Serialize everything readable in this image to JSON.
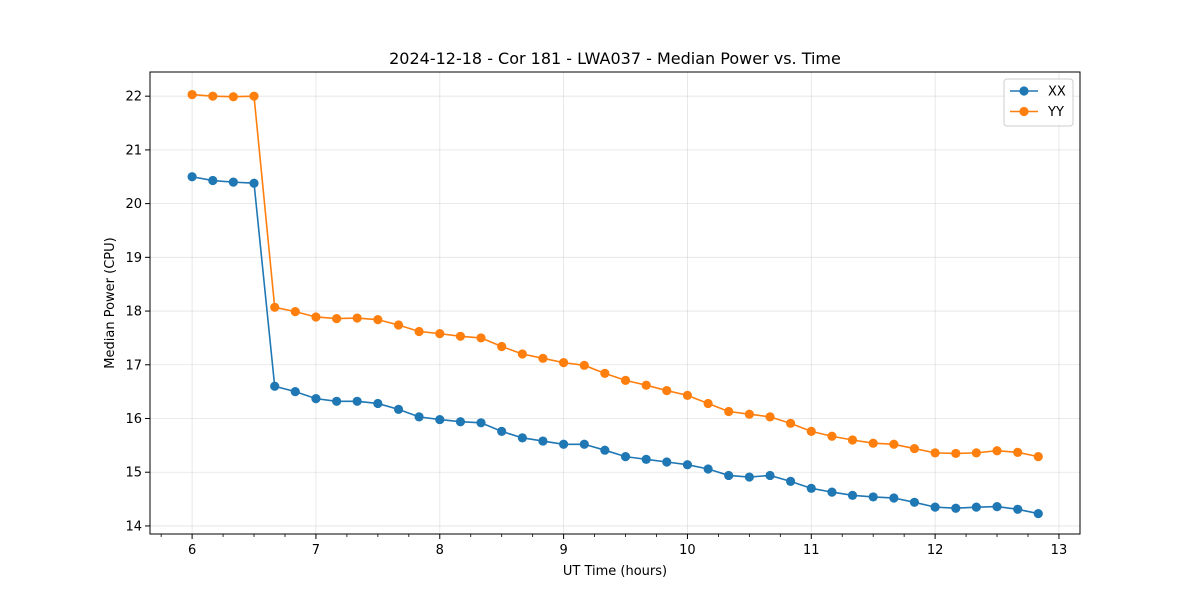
{
  "chart_data": {
    "type": "line",
    "title": "2024-12-18 - Cor 181 - LWA037 - Median Power vs. Time",
    "xlabel": "UT Time (hours)",
    "ylabel": "Median Power (CPU)",
    "xlim": [
      5.66,
      13.17
    ],
    "ylim": [
      13.85,
      22.45
    ],
    "xticks": [
      6,
      7,
      8,
      9,
      10,
      11,
      12,
      13
    ],
    "xtick_labels": [
      "6",
      "7",
      "8",
      "9",
      "10",
      "11",
      "12",
      "13"
    ],
    "yticks": [
      14,
      15,
      16,
      17,
      18,
      19,
      20,
      21,
      22
    ],
    "ytick_labels": [
      "14",
      "15",
      "16",
      "17",
      "18",
      "19",
      "20",
      "21",
      "22"
    ],
    "grid": true,
    "legend_position": "top-right",
    "x": [
      6.0,
      6.167,
      6.333,
      6.5,
      6.667,
      6.833,
      7.0,
      7.167,
      7.333,
      7.5,
      7.667,
      7.833,
      8.0,
      8.167,
      8.333,
      8.5,
      8.667,
      8.833,
      9.0,
      9.167,
      9.333,
      9.5,
      9.667,
      9.833,
      10.0,
      10.167,
      10.333,
      10.5,
      10.667,
      10.833,
      11.0,
      11.167,
      11.333,
      11.5,
      11.667,
      11.833,
      12.0,
      12.167,
      12.333,
      12.5,
      12.667,
      12.833
    ],
    "series": [
      {
        "name": "XX",
        "color": "#1f77b4",
        "values": [
          20.5,
          20.43,
          20.4,
          20.38,
          16.6,
          16.5,
          16.37,
          16.32,
          16.32,
          16.28,
          16.17,
          16.03,
          15.98,
          15.94,
          15.92,
          15.76,
          15.64,
          15.58,
          15.52,
          15.52,
          15.41,
          15.29,
          15.24,
          15.19,
          15.14,
          15.06,
          14.94,
          14.91,
          14.94,
          14.83,
          14.7,
          14.63,
          14.57,
          14.54,
          14.52,
          14.44,
          14.35,
          14.33,
          14.35,
          14.36,
          14.31,
          14.23
        ]
      },
      {
        "name": "YY",
        "color": "#ff7f0e",
        "values": [
          22.03,
          22.0,
          21.99,
          22.0,
          18.07,
          17.99,
          17.89,
          17.86,
          17.87,
          17.84,
          17.74,
          17.62,
          17.58,
          17.53,
          17.5,
          17.34,
          17.2,
          17.12,
          17.04,
          16.99,
          16.84,
          16.71,
          16.62,
          16.52,
          16.43,
          16.28,
          16.13,
          16.08,
          16.03,
          15.91,
          15.76,
          15.67,
          15.6,
          15.54,
          15.52,
          15.44,
          15.36,
          15.35,
          15.36,
          15.4,
          15.37,
          15.29
        ]
      }
    ]
  }
}
